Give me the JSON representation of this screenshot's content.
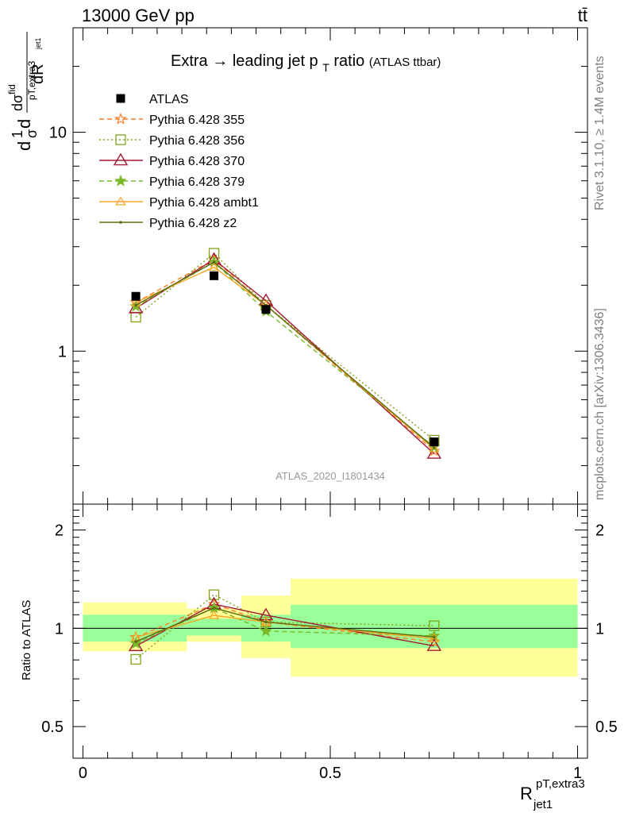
{
  "header": {
    "left": "13000 GeV pp",
    "right": "tt̄"
  },
  "title": {
    "main_prefix": "Extra",
    "arrow": "→",
    "main_text": " leading jet p",
    "main_sub": "T",
    "main_suffix": " ratio",
    "small": "(ATLAS ttbar)"
  },
  "watermark": "ATLAS_2020_I1801434",
  "side_labels": {
    "rivet": "Rivet 3.1.10, ≥ 1.4M events",
    "mcplots": "mcplots.cern.ch [arXiv:1306.3436]"
  },
  "ylabel_main": {
    "a": "d",
    "b": "1",
    "c": "σ",
    "d": "d",
    "e": "dσ",
    "e_sup": "fid",
    "e_sub": "pT,extra3",
    "e_sub2": "jet1",
    "f": "dR"
  },
  "ylabel_ratio": "Ratio to ATLAS",
  "xlabel": {
    "base": "R",
    "sup": "pT,extra3",
    "sub": "jet1"
  },
  "legend": [
    "ATLAS",
    "Pythia 6.428 355",
    "Pythia 6.428 356",
    "Pythia 6.428 370",
    "Pythia 6.428 379",
    "Pythia 6.428 ambt1",
    "Pythia 6.428 z2"
  ],
  "chart_data": {
    "type": "line",
    "xlim": [
      -0.02,
      1.02
    ],
    "ylim_main": [
      0.2,
      30
    ],
    "ylim_ratio": [
      0.4,
      2.4
    ],
    "log_y": true,
    "x_ticks": [
      0,
      0.5,
      1
    ],
    "x_tick_labels": [
      "0",
      "0.5",
      "1"
    ],
    "y_ticks_main": [
      1,
      10
    ],
    "y_tick_labels_main": [
      "1",
      "10"
    ],
    "y_ticks_ratio": [
      0.5,
      1,
      2
    ],
    "y_tick_labels_ratio": [
      "0.5",
      "1",
      "2"
    ],
    "bins": [
      [
        0,
        0.21
      ],
      [
        0.21,
        0.32
      ],
      [
        0.32,
        0.42
      ],
      [
        0.42,
        1.0
      ]
    ],
    "x": [
      0.107,
      0.265,
      0.37,
      0.71
    ],
    "data": {
      "name": "ATLAS",
      "values": [
        1.78,
        2.21,
        1.55,
        0.385
      ],
      "color": "#000000",
      "band_inner": [
        [
          0.91,
          1.1
        ],
        [
          0.95,
          1.07
        ],
        [
          0.91,
          1.1
        ],
        [
          0.87,
          1.18
        ]
      ],
      "band_outer": [
        [
          0.85,
          1.2
        ],
        [
          0.91,
          1.15
        ],
        [
          0.81,
          1.26
        ],
        [
          0.71,
          1.42
        ]
      ]
    },
    "series": [
      {
        "name": "Pythia 6.428 355",
        "color": "#ff7f2a",
        "dash": "6,4",
        "marker": "star-open",
        "values": [
          1.67,
          2.62,
          1.62,
          0.35
        ]
      },
      {
        "name": "Pythia 6.428 356",
        "color": "#80a31a",
        "dash": "2,3",
        "marker": "square-open",
        "values": [
          1.43,
          2.8,
          1.62,
          0.392
        ]
      },
      {
        "name": "Pythia 6.428 370",
        "color": "#a31a33",
        "dash": "",
        "marker": "triangle-open",
        "values": [
          1.57,
          2.62,
          1.7,
          0.34
        ]
      },
      {
        "name": "Pythia 6.428 379",
        "color": "#7ab82a",
        "dash": "6,4",
        "marker": "star",
        "values": [
          1.6,
          2.55,
          1.52,
          0.365
        ]
      },
      {
        "name": "Pythia 6.428 ambt1",
        "color": "#f5a623",
        "dash": "",
        "marker": "triangle-open-small",
        "values": [
          1.67,
          2.42,
          1.62,
          0.358
        ]
      },
      {
        "name": "Pythia 6.428 z2",
        "color": "#5e6b0e",
        "dash": "",
        "marker": "dot",
        "values": [
          1.62,
          2.55,
          1.62,
          0.362
        ]
      }
    ],
    "colors": {
      "band_inner": "#99ff99",
      "band_outer": "#ffff99"
    }
  }
}
